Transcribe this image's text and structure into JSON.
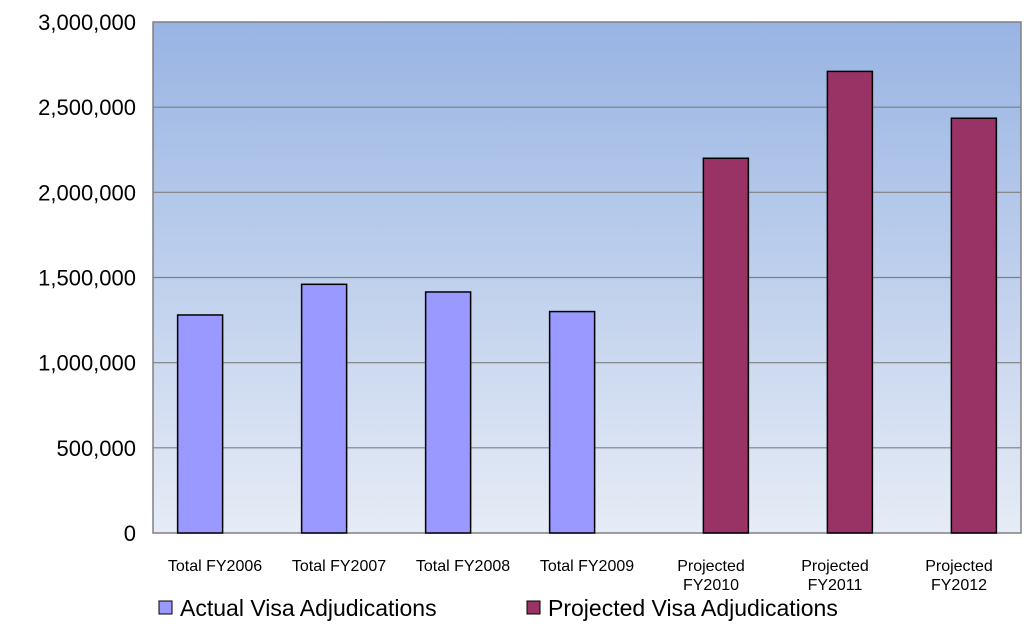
{
  "chart_data": {
    "type": "bar",
    "title": "",
    "xlabel": "",
    "ylabel": "",
    "ylim": [
      0,
      3000000
    ],
    "yticks": [
      "0",
      "500,000",
      "1,000,000",
      "1,500,000",
      "2,000,000",
      "2,500,000",
      "3,000,000"
    ],
    "categories": [
      [
        "Total FY2006"
      ],
      [
        "Total FY2007"
      ],
      [
        "Total FY2008"
      ],
      [
        "Total FY2009"
      ],
      [
        "Projected",
        "FY2010"
      ],
      [
        "Projected",
        "FY2011"
      ],
      [
        "Projected",
        "FY2012"
      ]
    ],
    "series": [
      {
        "name": "Actual Visa Adjudications",
        "color": "#9999FF",
        "values": [
          1280000,
          1460000,
          1415000,
          1300000,
          null,
          null,
          null
        ]
      },
      {
        "name": "Projected Visa Adjudications",
        "color": "#993366",
        "values": [
          null,
          null,
          null,
          null,
          2200000,
          2710000,
          2435000
        ]
      }
    ],
    "grid": true,
    "legend_position": "bottom"
  }
}
